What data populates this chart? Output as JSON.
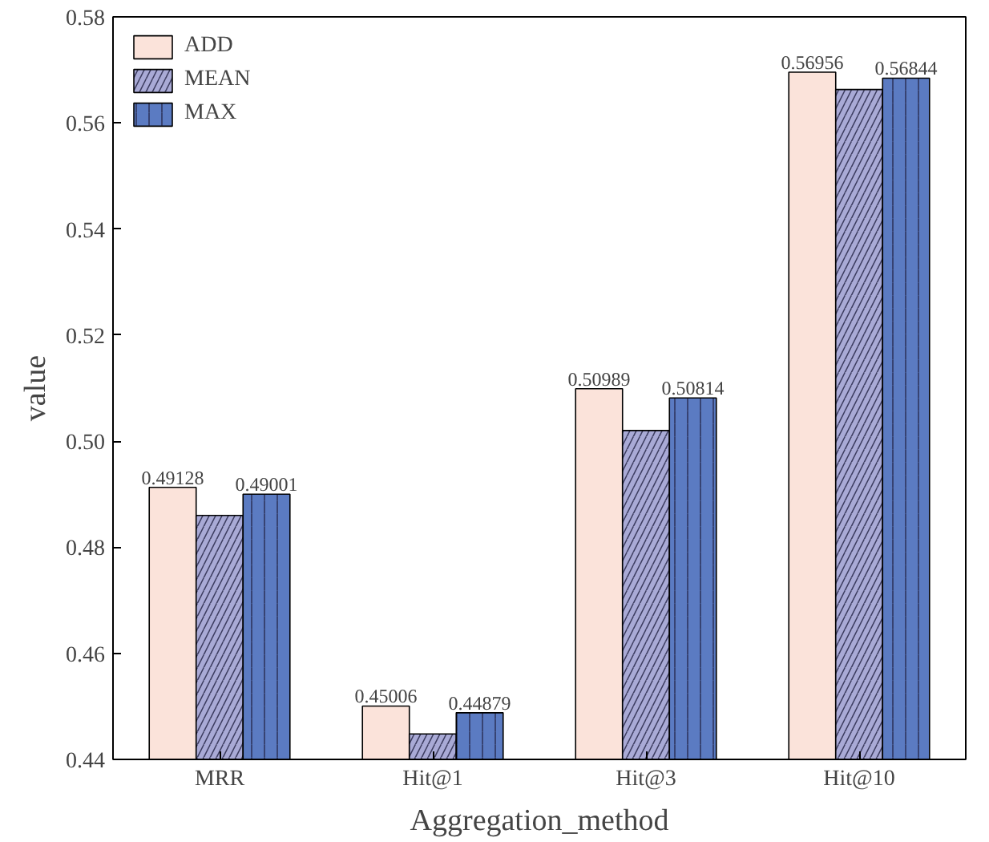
{
  "chart_data": {
    "type": "bar",
    "xlabel": "Aggregation_method",
    "ylabel": "value",
    "categories": [
      "MRR",
      "Hit@1",
      "Hit@3",
      "Hit@10"
    ],
    "series": [
      {
        "name": "ADD",
        "color": "#fbe3da",
        "values": [
          0.49128,
          0.45006,
          0.50989,
          0.56956
        ],
        "value_labels": [
          "0.49128",
          "0.45006",
          "0.50989",
          "0.56956"
        ]
      },
      {
        "name": "MEAN",
        "color": "#a9aad6",
        "values": [
          0.486,
          0.4448,
          0.502,
          0.5663
        ],
        "value_labels": [
          null,
          null,
          null,
          null
        ]
      },
      {
        "name": "MAX",
        "color": "#5b7bc2",
        "values": [
          0.49001,
          0.44879,
          0.50814,
          0.56844
        ],
        "value_labels": [
          "0.49001",
          "0.44879",
          "0.50814",
          "0.56844"
        ]
      }
    ],
    "ylim": [
      0.44,
      0.58
    ],
    "yticks": [
      0.44,
      0.46,
      0.48,
      {
        "value": 0.5,
        "label": "0.50"
      },
      0.52,
      0.54,
      0.56,
      0.58
    ],
    "legend": "top left",
    "grid": false
  }
}
